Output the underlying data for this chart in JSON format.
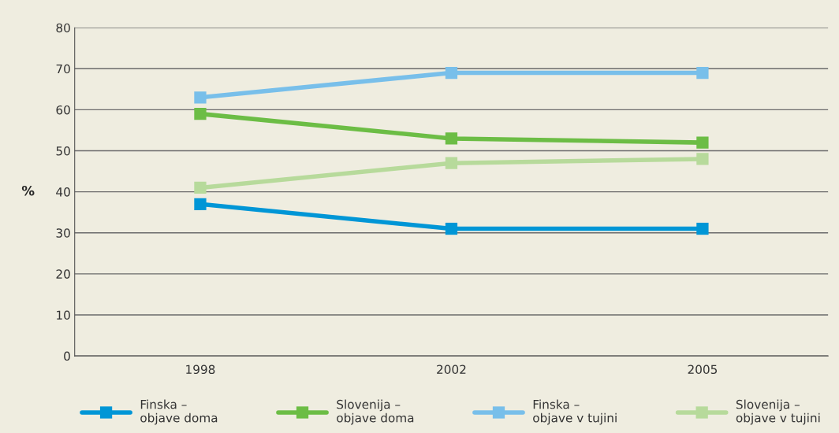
{
  "chart_data": {
    "type": "line",
    "categories": [
      "1998",
      "2002",
      "2005"
    ],
    "ylabel": "%",
    "ylim": [
      0,
      80
    ],
    "yticks": [
      0,
      10,
      20,
      30,
      40,
      50,
      60,
      70,
      80
    ],
    "grid": "y",
    "legend": "bottom",
    "marker": "square",
    "line_style": "solid",
    "series": [
      {
        "name": "Finska –\nobjave doma",
        "color": "#0096d6",
        "values": [
          37,
          31,
          31
        ]
      },
      {
        "name": "Slovenija –\nobjave doma",
        "color": "#6cbd45",
        "values": [
          59,
          53,
          52
        ]
      },
      {
        "name": "Finska –\nobjave v tujini",
        "color": "#78bfea",
        "values": [
          63,
          69,
          69
        ]
      },
      {
        "name": "Slovenija –\nobjave v tujini",
        "color": "#b7da9b",
        "values": [
          41,
          47,
          48
        ]
      }
    ]
  }
}
